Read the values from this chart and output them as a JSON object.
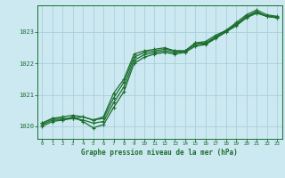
{
  "xlabel": "Graphe pression niveau de la mer (hPa)",
  "xlim": [
    -0.5,
    23.5
  ],
  "ylim": [
    1019.6,
    1023.85
  ],
  "yticks": [
    1020,
    1021,
    1022,
    1023
  ],
  "xticks": [
    0,
    1,
    2,
    3,
    4,
    5,
    6,
    7,
    8,
    9,
    10,
    11,
    12,
    13,
    14,
    15,
    16,
    17,
    18,
    19,
    20,
    21,
    22,
    23
  ],
  "background_color": "#cce8f0",
  "grid_color": "#aacfdb",
  "line_color": "#1a6e2e",
  "marker": "+",
  "series": [
    [
      1020.1,
      1020.25,
      1020.25,
      1020.25,
      1020.3,
      1020.2,
      1020.3,
      1021.05,
      1021.5,
      1022.3,
      1022.4,
      1022.45,
      1022.5,
      1022.4,
      1022.4,
      1022.65,
      1022.7,
      1022.9,
      1023.05,
      1023.3,
      1023.55,
      1023.7,
      1023.55,
      1023.5
    ],
    [
      1020.1,
      1020.25,
      1020.3,
      1020.35,
      1020.3,
      1020.2,
      1020.25,
      1020.9,
      1021.4,
      1022.2,
      1022.35,
      1022.4,
      1022.45,
      1022.4,
      1022.4,
      1022.65,
      1022.65,
      1022.85,
      1023.05,
      1023.25,
      1023.5,
      1023.65,
      1023.5,
      1023.48
    ],
    [
      1020.05,
      1020.2,
      1020.2,
      1020.3,
      1020.15,
      1019.95,
      1020.05,
      1020.6,
      1021.1,
      1022.0,
      1022.2,
      1022.3,
      1022.35,
      1022.3,
      1022.35,
      1022.55,
      1022.6,
      1022.8,
      1023.0,
      1023.2,
      1023.45,
      1023.6,
      1023.5,
      1023.45
    ],
    [
      1020.0,
      1020.15,
      1020.2,
      1020.25,
      1020.2,
      1020.1,
      1020.15,
      1020.75,
      1021.25,
      1022.1,
      1022.28,
      1022.35,
      1022.4,
      1022.35,
      1022.38,
      1022.6,
      1022.62,
      1022.82,
      1023.02,
      1023.22,
      1023.48,
      1023.62,
      1023.5,
      1023.46
    ]
  ]
}
